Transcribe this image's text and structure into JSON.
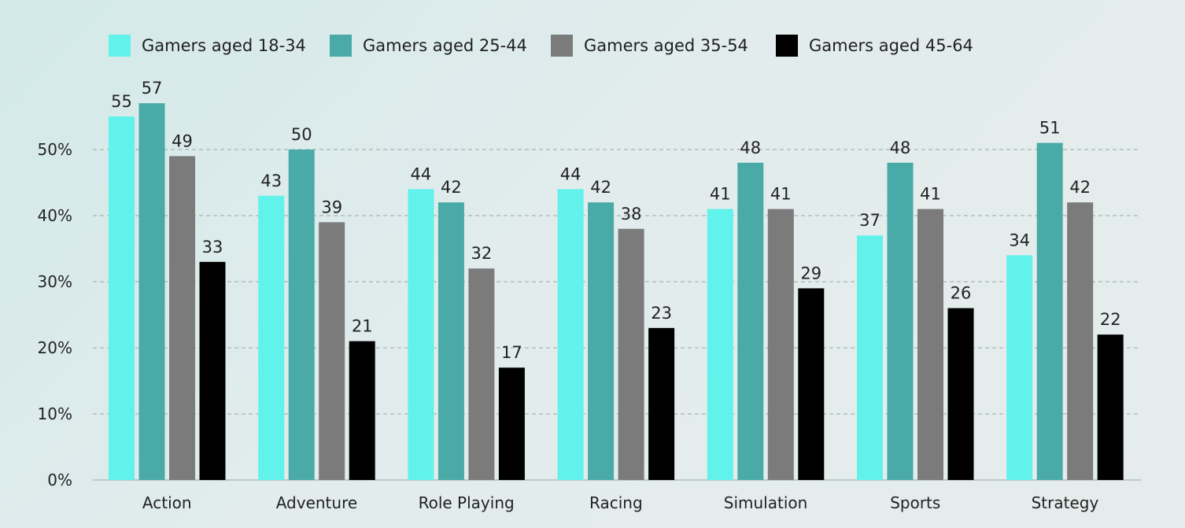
{
  "chart_data": {
    "type": "bar",
    "categories": [
      "Action",
      "Adventure",
      "Role Playing",
      "Racing",
      "Simulation",
      "Sports",
      "Strategy"
    ],
    "series": [
      {
        "name": "Gamers aged 18-34",
        "color": "#62f2ec",
        "values": [
          55,
          43,
          44,
          44,
          41,
          37,
          34
        ]
      },
      {
        "name": "Gamers aged 25-44",
        "color": "#49aaa7",
        "values": [
          57,
          50,
          42,
          42,
          48,
          48,
          51
        ]
      },
      {
        "name": "Gamers aged 35-54",
        "color": "#7b7b7b",
        "values": [
          49,
          39,
          32,
          38,
          41,
          41,
          42
        ]
      },
      {
        "name": "Gamers aged 45-64",
        "color": "#000000",
        "values": [
          33,
          21,
          17,
          23,
          29,
          26,
          22
        ]
      }
    ],
    "y_ticks": [
      "0%",
      "10%",
      "20%",
      "30%",
      "40%",
      "50%"
    ],
    "ylim": [
      0,
      60
    ],
    "grid": true,
    "legend_position": "top-left",
    "data_labels": true
  }
}
